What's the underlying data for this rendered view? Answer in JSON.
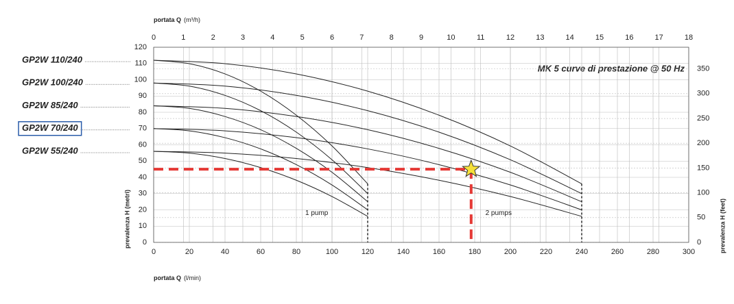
{
  "chart_data": {
    "type": "line",
    "title": "MK 5 curve di prestazione @ 50 Hz",
    "x_label": "portata Q",
    "x_unit": "(l/min)",
    "x2_label": "portata Q",
    "x2_unit": "(m³/h)",
    "y_label": "prevalenza H (metri)",
    "y2_label": "prevalenza H (feet)",
    "xlim": [
      0,
      300
    ],
    "xticks": [
      0,
      20,
      40,
      60,
      80,
      100,
      120,
      140,
      160,
      180,
      200,
      220,
      240,
      260,
      280,
      300
    ],
    "x2lim": [
      0,
      18
    ],
    "x2ticks": [
      0,
      1,
      2,
      3,
      4,
      5,
      6,
      7,
      8,
      9,
      10,
      11,
      12,
      13,
      14,
      15,
      16,
      17,
      18
    ],
    "ylim": [
      0,
      120
    ],
    "yticks": [
      0,
      10,
      20,
      30,
      40,
      50,
      60,
      70,
      80,
      90,
      100,
      110,
      120
    ],
    "y2lim": [
      0,
      393.7
    ],
    "y2ticks": [
      0,
      50,
      100,
      150,
      200,
      250,
      300,
      350
    ],
    "grid": true,
    "series": [
      {
        "name": "GP2W 110/240",
        "color": "#222222",
        "x": [
          0,
          20,
          40,
          60,
          80,
          100,
          120
        ],
        "values": [
          112,
          109.9,
          103.6,
          93,
          78.2,
          59.3,
          36
        ]
      },
      {
        "name": "GP2W 100/240",
        "color": "#222222",
        "x": [
          0,
          20,
          40,
          60,
          80,
          100,
          120
        ],
        "values": [
          98,
          96.1,
          90.4,
          81,
          67.8,
          50.8,
          30
        ]
      },
      {
        "name": "GP2W 85/240",
        "color": "#222222",
        "x": [
          0,
          20,
          40,
          60,
          80,
          100,
          120
        ],
        "values": [
          84,
          82.4,
          77.4,
          69.3,
          57.8,
          43.1,
          25
        ]
      },
      {
        "name": "GP2W 70/240",
        "color": "#222222",
        "x": [
          0,
          20,
          40,
          60,
          80,
          100,
          120
        ],
        "values": [
          70,
          68.6,
          64.4,
          57.5,
          47.8,
          35.3,
          20
        ]
      },
      {
        "name": "GP2W 55/240",
        "color": "#222222",
        "x": [
          0,
          20,
          40,
          60,
          80,
          100,
          120
        ],
        "values": [
          56,
          54.9,
          51.6,
          46,
          38.2,
          28.2,
          16
        ]
      },
      {
        "color": "#222222",
        "x": [
          0,
          40,
          80,
          120,
          160,
          200,
          240
        ],
        "values": [
          112,
          109.9,
          103.6,
          93,
          78.2,
          59.3,
          36
        ]
      },
      {
        "color": "#222222",
        "x": [
          0,
          40,
          80,
          120,
          160,
          200,
          240
        ],
        "values": [
          98,
          96.1,
          90.4,
          81,
          67.8,
          50.8,
          30
        ]
      },
      {
        "color": "#222222",
        "x": [
          0,
          40,
          80,
          120,
          160,
          200,
          240
        ],
        "values": [
          84,
          82.4,
          77.4,
          69.3,
          57.8,
          43.1,
          25
        ]
      },
      {
        "color": "#222222",
        "x": [
          0,
          40,
          80,
          120,
          160,
          200,
          240
        ],
        "values": [
          70,
          68.6,
          64.4,
          57.5,
          47.8,
          35.3,
          20
        ]
      },
      {
        "color": "#222222",
        "x": [
          0,
          40,
          80,
          120,
          160,
          200,
          240
        ],
        "values": [
          56,
          54.9,
          51.6,
          46,
          38.2,
          28.2,
          16
        ]
      }
    ],
    "annotations": [
      "1 pump",
      "2 pumps"
    ],
    "operating_point": {
      "x": 178,
      "y": 45,
      "color": "#e53935"
    },
    "selected_model": 3
  }
}
